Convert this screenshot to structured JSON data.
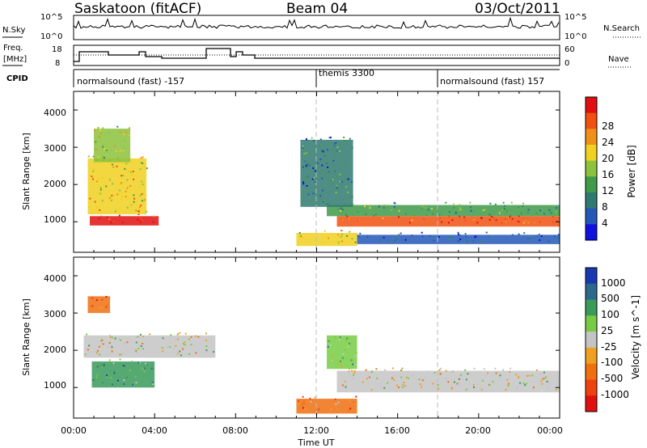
{
  "header": {
    "station": "Saskatoon (fitACF)",
    "beam": "Beam 04",
    "date": "03/Oct/2011"
  },
  "noise_panel": {
    "left_label": "N.Sky",
    "right_label": "N.Search",
    "left_ticks": [
      "10^5",
      "10^0"
    ],
    "right_ticks": [
      "10^5",
      "10^0"
    ]
  },
  "freq_panel": {
    "left_label_1": "Freq.",
    "left_label_2": "[MHz]",
    "right_label": "Nave",
    "left_ticks": [
      "18",
      "8"
    ],
    "right_ticks": [
      "60",
      "0"
    ]
  },
  "cpid": {
    "label": "CPID",
    "segments": [
      {
        "text": "normalsound (fast) -157",
        "start_hour": 0
      },
      {
        "text": "themis 3300",
        "start_hour": 12
      },
      {
        "text": "normalsound (fast) 157",
        "start_hour": 18
      }
    ]
  },
  "time_axis": {
    "label": "Time UT",
    "ticks": [
      "00:00",
      "04:00",
      "08:00",
      "12:00",
      "16:00",
      "20:00",
      "00:00"
    ]
  },
  "chart_data": [
    {
      "type": "heatmap",
      "ylabel": "Slant Range [km]",
      "ylim": [
        180,
        4500
      ],
      "yticks": [
        "1000",
        "2000",
        "3000",
        "4000"
      ],
      "xlim": [
        0,
        24
      ],
      "colorbar": {
        "label": "Power [dB]",
        "ticks": [
          "4",
          "8",
          "12",
          "16",
          "20",
          "24",
          "28"
        ],
        "colors": [
          "#1010e0",
          "#2458b8",
          "#2f7a70",
          "#3f9a4a",
          "#8cc23c",
          "#f0d020",
          "#f09018",
          "#f05010",
          "#e01010"
        ]
      },
      "regions": [
        {
          "x0": 0.8,
          "x1": 4.2,
          "y0": 900,
          "y1": 1150,
          "level": 8
        },
        {
          "x0": 0.7,
          "x1": 3.6,
          "y0": 1200,
          "y1": 2700,
          "level": 5
        },
        {
          "x0": 1.0,
          "x1": 2.8,
          "y0": 2600,
          "y1": 3500,
          "level": 4
        },
        {
          "x0": 13.0,
          "x1": 24.0,
          "y0": 870,
          "y1": 1150,
          "level": 7
        },
        {
          "x0": 12.5,
          "x1": 24.0,
          "y0": 1150,
          "y1": 1450,
          "level": 3
        },
        {
          "x0": 11.2,
          "x1": 13.8,
          "y0": 1400,
          "y1": 3200,
          "level": 2
        },
        {
          "x0": 11.0,
          "x1": 14.0,
          "y0": 350,
          "y1": 700,
          "level": 5
        },
        {
          "x0": 14.0,
          "x1": 24.0,
          "y0": 400,
          "y1": 650,
          "level": 1
        }
      ]
    },
    {
      "type": "heatmap",
      "ylabel": "Slant Range [km]",
      "ylim": [
        180,
        4500
      ],
      "yticks": [
        "1000",
        "2000",
        "3000",
        "4000"
      ],
      "xlim": [
        0,
        24
      ],
      "colorbar": {
        "label": "Velocity [m s^-1]",
        "ticks": [
          "1000",
          "500",
          "100",
          "25",
          "-25",
          "-100",
          "-500",
          "-1000"
        ],
        "colors": [
          "#1838b0",
          "#2c6a8c",
          "#3a9a5a",
          "#78cc44",
          "#c4c4c4",
          "#f0a020",
          "#f07010",
          "#f04010",
          "#e01010"
        ]
      },
      "regions": [
        {
          "x0": 0.5,
          "x1": 7.0,
          "y0": 1800,
          "y1": 2400,
          "level": 4
        },
        {
          "x0": 0.9,
          "x1": 4.0,
          "y0": 1000,
          "y1": 1700,
          "level": 2
        },
        {
          "x0": 0.7,
          "x1": 1.8,
          "y0": 3000,
          "y1": 3450,
          "level": 6
        },
        {
          "x0": 13.0,
          "x1": 24.0,
          "y0": 870,
          "y1": 1450,
          "level": 4
        },
        {
          "x0": 11.0,
          "x1": 14.0,
          "y0": 300,
          "y1": 700,
          "level": 6
        },
        {
          "x0": 12.5,
          "x1": 14.0,
          "y0": 1500,
          "y1": 2400,
          "level": 3
        }
      ]
    }
  ]
}
